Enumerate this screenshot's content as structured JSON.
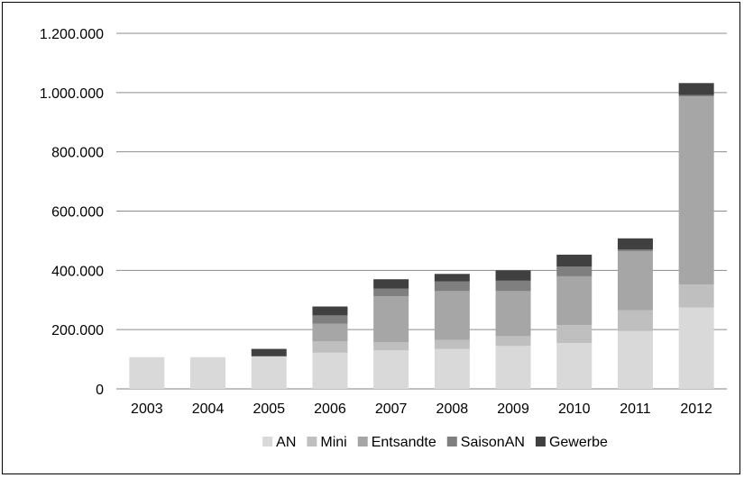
{
  "chart_data": {
    "type": "bar",
    "stacked": true,
    "categories": [
      "2003",
      "2004",
      "2005",
      "2006",
      "2007",
      "2008",
      "2009",
      "2010",
      "2011",
      "2012"
    ],
    "series": [
      {
        "name": "AN",
        "color": "#d9d9d9",
        "values": [
          107000,
          107000,
          110000,
          122000,
          130000,
          135000,
          145000,
          155000,
          195000,
          275000
        ]
      },
      {
        "name": "Mini",
        "color": "#bfbfbf",
        "values": [
          0,
          0,
          0,
          38000,
          28000,
          30000,
          33000,
          60000,
          70000,
          77000
        ]
      },
      {
        "name": "Entsandte",
        "color": "#a6a6a6",
        "values": [
          0,
          0,
          0,
          60000,
          155000,
          165000,
          152000,
          165000,
          200000,
          635000
        ]
      },
      {
        "name": "SaisonAN",
        "color": "#7f7f7f",
        "values": [
          0,
          0,
          0,
          28000,
          25000,
          33000,
          35000,
          33000,
          5000,
          5000
        ]
      },
      {
        "name": "Gewerbe",
        "color": "#404040",
        "values": [
          0,
          0,
          25000,
          30000,
          32000,
          25000,
          35000,
          40000,
          38000,
          40000
        ]
      }
    ],
    "ylim": [
      0,
      1200000
    ],
    "yticks": [
      {
        "value": 0,
        "label": "0"
      },
      {
        "value": 200000,
        "label": "200.000"
      },
      {
        "value": 400000,
        "label": "400.000"
      },
      {
        "value": 600000,
        "label": "600.000"
      },
      {
        "value": 800000,
        "label": "800.000"
      },
      {
        "value": 1000000,
        "label": "1.000.000"
      },
      {
        "value": 1200000,
        "label": "1.200.000"
      }
    ],
    "grid": true,
    "legend_position": "bottom"
  }
}
